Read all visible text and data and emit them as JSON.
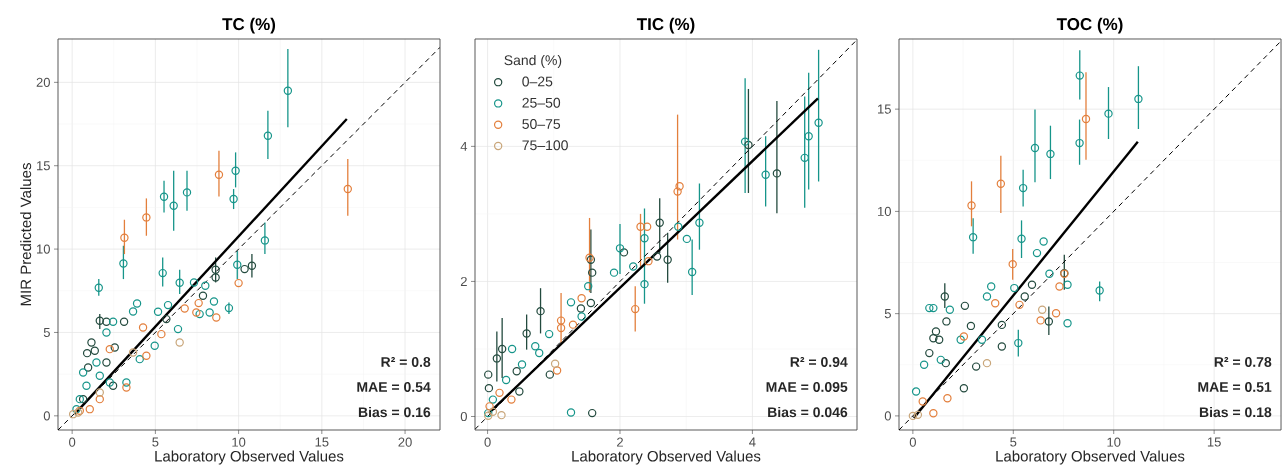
{
  "chart_data": [
    {
      "type": "scatter",
      "title": "TC (%)",
      "xlabel": "Laboratory Observed Values",
      "ylabel": "MIR Predicted Values",
      "xlim": [
        -0.85,
        22.1
      ],
      "ylim": [
        -0.85,
        22.6
      ],
      "xticks": [
        0,
        5,
        10,
        15,
        20
      ],
      "yticks": [
        0,
        5,
        10,
        15,
        20
      ],
      "grid": true,
      "legend": false,
      "marker": "circle",
      "annotations": [
        "R² = 0.8",
        "MAE = 0.54",
        "Bias = 0.16"
      ],
      "series": [
        {
          "color": "#234a3e",
          "x": [
            10.8,
            10.36,
            8.62,
            8.62,
            7.86,
            5.66,
            1.66,
            2.06,
            3.12,
            1.16,
            1.36,
            0.9,
            2.56,
            0.96,
            2.46,
            2.06,
            0.66
          ],
          "values": [
            9.0,
            8.8,
            8.76,
            8.3,
            7.2,
            5.8,
            5.7,
            5.64,
            5.64,
            4.4,
            3.9,
            3.76,
            4.1,
            2.9,
            1.8,
            3.2,
            1.0
          ],
          "errors": [
            [
              8.3,
              9.7
            ],
            null,
            [
              8.0,
              9.5
            ],
            null,
            null,
            null,
            [
              5.2,
              6.1
            ],
            null,
            null,
            null,
            null,
            null,
            null,
            null,
            null,
            null,
            null
          ]
        },
        {
          "color": "#16958a",
          "x": [
            12.96,
            11.76,
            9.82,
            9.7,
            5.52,
            6.1,
            6.9,
            11.58,
            3.08,
            9.92,
            1.6,
            5.44,
            6.46,
            9.42,
            8.52,
            3.9,
            3.66,
            5.16,
            5.76,
            7.66,
            8.26,
            7.32,
            8.0,
            2.46,
            2.06,
            6.36,
            4.96,
            0.66,
            1.46,
            0.86,
            2.26,
            0.26,
            0.46,
            3.26,
            4.06,
            1.66
          ],
          "values": [
            19.5,
            16.8,
            14.7,
            13.0,
            13.14,
            12.6,
            13.4,
            10.52,
            9.14,
            9.06,
            7.68,
            8.56,
            7.98,
            6.46,
            6.86,
            6.74,
            6.26,
            6.24,
            6.64,
            6.1,
            6.2,
            8.0,
            7.8,
            5.64,
            5.0,
            5.2,
            4.2,
            2.6,
            3.2,
            1.8,
            2.0,
            0.4,
            1.0,
            2.0,
            3.4,
            2.4
          ],
          "errors": [
            [
              17.3,
              22.0
            ],
            [
              15.4,
              18.3
            ],
            [
              13.7,
              15.8
            ],
            [
              12.4,
              13.6
            ],
            [
              12.2,
              14.1
            ],
            [
              11.1,
              14.7
            ],
            [
              12.3,
              14.7
            ],
            [
              9.7,
              11.6
            ],
            [
              8.2,
              10.2
            ],
            [
              8.2,
              9.9
            ],
            [
              7.2,
              8.2
            ],
            [
              7.76,
              9.5
            ],
            [
              7.3,
              8.76
            ],
            [
              6.1,
              6.8
            ],
            null,
            null,
            null,
            null,
            null,
            null,
            null,
            null,
            null,
            null,
            null,
            null,
            null,
            null,
            null,
            null,
            null,
            null,
            null,
            null,
            null,
            null
          ]
        },
        {
          "color": "#e37f3c",
          "x": [
            16.56,
            8.82,
            4.46,
            3.14,
            10.0,
            8.66,
            7.6,
            7.46,
            6.76,
            4.26,
            5.36,
            3.26,
            4.46,
            2.26,
            1.06,
            1.66,
            0.46
          ],
          "values": [
            13.6,
            14.46,
            11.9,
            10.68,
            7.96,
            5.9,
            6.76,
            6.2,
            6.44,
            5.3,
            4.9,
            1.7,
            3.6,
            4.0,
            0.4,
            1.0,
            0.3
          ],
          "errors": [
            [
              12.0,
              15.4
            ],
            [
              13.16,
              15.9
            ],
            [
              10.8,
              13.04
            ],
            [
              9.7,
              11.76
            ],
            null,
            null,
            null,
            null,
            null,
            null,
            null,
            null,
            null,
            null,
            null,
            null,
            null
          ]
        },
        {
          "color": "#c9a67a",
          "x": [
            6.46,
            0.06,
            0.36,
            3.66,
            1.66
          ],
          "values": [
            4.4,
            0.1,
            0.2,
            3.8,
            1.4
          ]
        },
        {
          "type": "line",
          "color": "#000000",
          "line_style": "solid",
          "marker": "none",
          "x": [
            0.15,
            16.5
          ],
          "values": [
            0.1,
            17.8
          ]
        },
        {
          "type": "line",
          "color": "#000000",
          "line_style": "dashed",
          "marker": "none",
          "x": [
            -0.85,
            22.1
          ],
          "values": [
            -0.85,
            22.1
          ]
        }
      ]
    },
    {
      "type": "scatter",
      "title": "TIC (%)",
      "xlabel": "Laboratory Observed Values",
      "xlim": [
        -0.19,
        5.58
      ],
      "ylim": [
        -0.2,
        5.59
      ],
      "xticks": [
        0,
        2,
        4
      ],
      "yticks": [
        0,
        2,
        4
      ],
      "grid": true,
      "legend": "top left",
      "legend_title": "Sand (%)",
      "marker": "circle",
      "annotations": [
        "R² = 0.94",
        "MAE = 0.095",
        "Bias = 0.046"
      ],
      "series": [
        {
          "name": "0–25",
          "color": "#234a3e",
          "x": [
            4.37,
            3.94,
            2.6,
            2.72,
            2.56,
            2.06,
            1.56,
            1.58,
            1.56,
            1.41,
            0.8,
            0.59,
            0.22,
            0.14,
            0.44,
            0.94,
            0.01,
            0.02,
            1.58,
            0.48
          ],
          "values": [
            3.6,
            4.02,
            2.87,
            2.32,
            2.37,
            2.43,
            2.32,
            2.13,
            1.68,
            1.6,
            1.56,
            1.23,
            1.0,
            0.86,
            0.67,
            0.62,
            0.62,
            0.42,
            0.05,
            0.37
          ],
          "errors": [
            [
              3.01,
              4.67
            ],
            [
              3.31,
              4.85
            ],
            [
              2.42,
              3.23
            ],
            [
              1.98,
              2.72
            ],
            null,
            null,
            [
              1.83,
              2.77
            ],
            null,
            null,
            null,
            [
              1.23,
              1.9
            ],
            [
              0.99,
              1.51
            ],
            [
              0.57,
              1.46
            ],
            [
              0.52,
              1.26
            ],
            null,
            null,
            null,
            null,
            null,
            null
          ]
        },
        {
          "name": "25–50",
          "color": "#16958a",
          "x": [
            5.0,
            4.85,
            4.79,
            3.89,
            4.2,
            3.2,
            3.09,
            3.01,
            2.88,
            2.37,
            2.37,
            2.0,
            1.91,
            2.2,
            1.52,
            1.26,
            0.93,
            0.72,
            0.37,
            0.52,
            1.26,
            0.28,
            0.08,
            0.01,
            1.42,
            0.78
          ],
          "values": [
            4.35,
            4.15,
            3.83,
            4.07,
            3.58,
            2.87,
            2.14,
            2.63,
            2.81,
            2.64,
            1.96,
            2.49,
            2.13,
            2.22,
            1.93,
            1.69,
            1.22,
            1.04,
            1.0,
            0.77,
            0.06,
            0.54,
            0.25,
            0.05,
            1.48,
            0.94
          ],
          "errors": [
            [
              3.48,
              5.43
            ],
            [
              3.36,
              5.09
            ],
            [
              3.09,
              4.74
            ],
            [
              3.31,
              5.01
            ],
            [
              3.11,
              4.15
            ],
            [
              2.47,
              3.45
            ],
            [
              1.8,
              2.62
            ],
            null,
            null,
            [
              2.22,
              3.08
            ],
            [
              1.67,
              2.31
            ],
            [
              2.11,
              2.85
            ],
            null,
            null,
            null,
            null,
            null,
            null,
            null,
            null,
            null,
            null,
            null,
            null,
            null,
            null
          ]
        },
        {
          "name": "50–75",
          "color": "#e37f3c",
          "x": [
            2.87,
            2.9,
            2.31,
            2.41,
            2.23,
            2.43,
            1.54,
            1.42,
            1.11,
            1.11,
            1.29,
            1.05,
            0.36,
            0.03,
            0.18
          ],
          "values": [
            3.33,
            3.41,
            2.81,
            2.81,
            1.59,
            2.3,
            2.35,
            1.75,
            1.42,
            1.31,
            1.36,
            0.68,
            0.25,
            0.15,
            0.35
          ],
          "errors": [
            [
              2.62,
              4.47
            ],
            null,
            [
              2.22,
              3.0
            ],
            null,
            [
              1.26,
              1.93
            ],
            null,
            [
              1.84,
              2.94
            ],
            null,
            [
              1.09,
              1.83
            ],
            null,
            null,
            null,
            null,
            null,
            null
          ]
        },
        {
          "name": "75–100",
          "color": "#c9a67a",
          "x": [
            1.02,
            0.21,
            0.01,
            0.08
          ],
          "values": [
            0.78,
            0.02,
            0.01,
            0.07
          ]
        },
        {
          "type": "line",
          "color": "#000000",
          "line_style": "solid",
          "marker": "none",
          "x": [
            0.02,
            4.99
          ],
          "values": [
            0.05,
            4.71
          ]
        },
        {
          "type": "line",
          "color": "#000000",
          "line_style": "dashed",
          "marker": "none",
          "x": [
            -0.19,
            5.58
          ],
          "values": [
            -0.19,
            5.58
          ]
        }
      ]
    },
    {
      "type": "scatter",
      "title": "TOC (%)",
      "xlabel": "Laboratory Observed Values",
      "xlim": [
        -0.69,
        18.33
      ],
      "ylim": [
        -0.69,
        18.43
      ],
      "xticks": [
        0,
        5,
        10,
        15
      ],
      "yticks": [
        0,
        5,
        10,
        15
      ],
      "grid": true,
      "legend": false,
      "marker": "circle",
      "annotations": [
        "R² = 0.78",
        "MAE = 0.51",
        "Bias = 0.18"
      ],
      "series": [
        {
          "color": "#234a3e",
          "x": [
            1.59,
            1.67,
            1.15,
            1.02,
            1.31,
            0.82,
            2.59,
            2.89,
            5.57,
            5.93,
            6.77,
            7.54,
            4.43,
            4.43,
            2.54,
            3.15,
            1.64
          ],
          "values": [
            5.84,
            4.62,
            4.13,
            3.8,
            3.72,
            3.07,
            5.38,
            4.4,
            5.84,
            6.41,
            4.62,
            6.98,
            4.45,
            3.39,
            1.35,
            2.41,
            2.58
          ],
          "errors": [
            [
              5.27,
              6.49
            ],
            null,
            null,
            null,
            null,
            null,
            null,
            null,
            null,
            null,
            [
              3.96,
              5.35
            ],
            [
              6.17,
              7.88
            ],
            null,
            null,
            null,
            null,
            null
          ]
        },
        {
          "color": "#16958a",
          "x": [
            8.31,
            11.23,
            9.74,
            8.3,
            6.08,
            6.85,
            5.49,
            3.0,
            5.41,
            6.51,
            6.18,
            6.8,
            7.7,
            9.3,
            7.7,
            5.25,
            3.9,
            3.69,
            5.05,
            1.02,
            0.82,
            1.84,
            0.56,
            0.16,
            2.38,
            3.44,
            1.39
          ],
          "values": [
            16.64,
            15.5,
            14.78,
            13.34,
            13.1,
            12.81,
            11.14,
            8.74,
            8.66,
            8.53,
            7.96,
            6.95,
            6.41,
            6.13,
            4.53,
            3.56,
            6.33,
            5.84,
            6.25,
            5.27,
            5.27,
            5.19,
            2.5,
            1.19,
            3.72,
            3.72,
            2.74
          ],
          "errors": [
            [
              15.47,
              17.88
            ],
            [
              14.03,
              17.1
            ],
            [
              13.54,
              16.08
            ],
            [
              12.28,
              14.49
            ],
            [
              11.42,
              14.98
            ],
            [
              11.58,
              14.19
            ],
            [
              10.24,
              12.04
            ],
            [
              7.93,
              9.67
            ],
            [
              7.72,
              9.56
            ],
            null,
            null,
            null,
            null,
            [
              5.6,
              6.57
            ],
            null,
            [
              2.9,
              4.21
            ],
            null,
            null,
            null,
            null,
            null,
            null,
            null,
            null,
            null,
            null,
            null
          ]
        },
        {
          "color": "#e37f3c",
          "x": [
            8.62,
            4.38,
            2.92,
            4.97,
            7.54,
            7.3,
            7.13,
            6.36,
            5.31,
            4.1,
            2.54,
            1.02,
            1.72,
            0.49
          ],
          "values": [
            14.52,
            11.35,
            10.29,
            7.42,
            6.95,
            6.33,
            5.02,
            4.67,
            5.43,
            5.51,
            3.88,
            0.13,
            0.86,
            0.7
          ],
          "errors": [
            [
              12.53,
              16.8
            ],
            [
              9.92,
              12.72
            ],
            [
              9.27,
              11.47
            ],
            [
              6.66,
              8.16
            ],
            null,
            null,
            null,
            null,
            null,
            null,
            null,
            null,
            null,
            null
          ]
        },
        {
          "color": "#c9a67a",
          "x": [
            6.44,
            3.69,
            0.0,
            0.25
          ],
          "values": [
            5.19,
            2.58,
            0.0,
            0.05
          ]
        },
        {
          "type": "line",
          "color": "#000000",
          "line_style": "solid",
          "marker": "none",
          "x": [
            0.05,
            11.2
          ],
          "values": [
            -0.1,
            13.4
          ]
        },
        {
          "type": "line",
          "color": "#000000",
          "line_style": "dashed",
          "marker": "none",
          "x": [
            -0.69,
            18.33
          ],
          "values": [
            -0.69,
            18.33
          ]
        }
      ]
    }
  ]
}
